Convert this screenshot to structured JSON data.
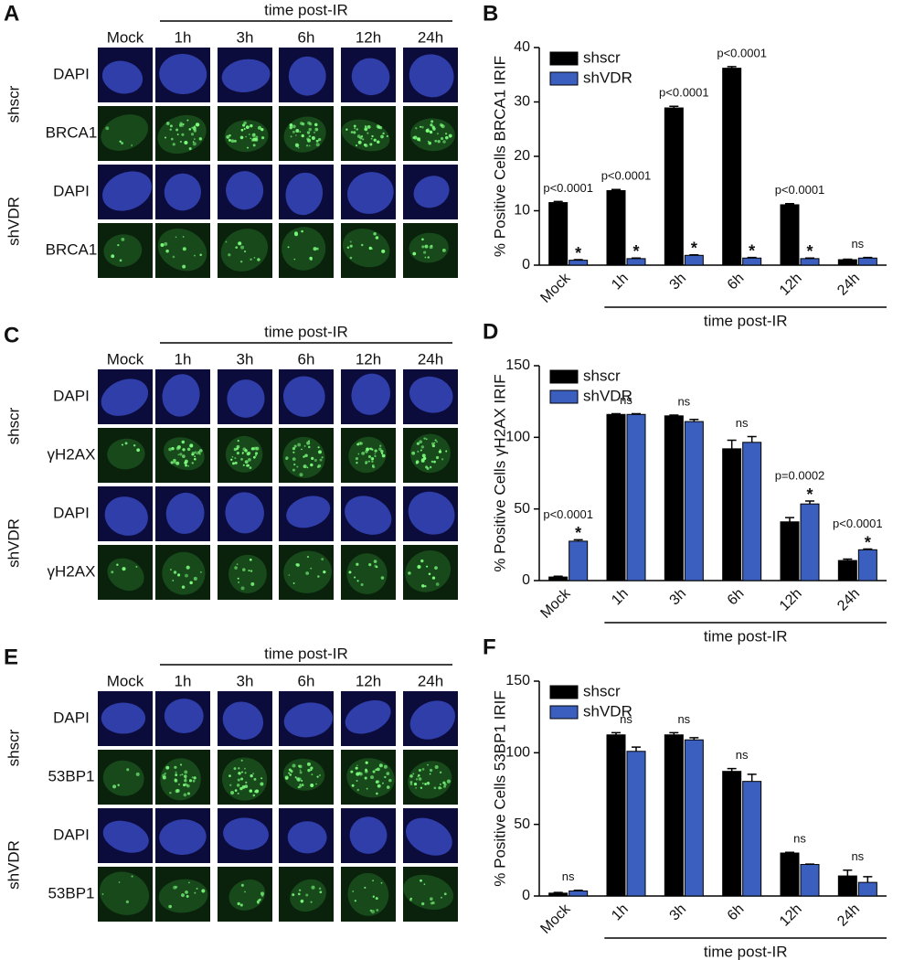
{
  "image_panels": [
    {
      "letter": "A",
      "header": "time post-IR",
      "columns": [
        "Mock",
        "1h",
        "3h",
        "6h",
        "12h",
        "24h"
      ],
      "groups": [
        {
          "name": "shscr",
          "rows": [
            "DAPI",
            "BRCA1"
          ]
        },
        {
          "name": "shVDR",
          "rows": [
            "DAPI",
            "BRCA1"
          ]
        }
      ]
    },
    {
      "letter": "C",
      "header": "time post-IR",
      "columns": [
        "Mock",
        "1h",
        "3h",
        "6h",
        "12h",
        "24h"
      ],
      "groups": [
        {
          "name": "shscr",
          "rows": [
            "DAPI",
            "γH2AX"
          ]
        },
        {
          "name": "shVDR",
          "rows": [
            "DAPI",
            "γH2AX"
          ]
        }
      ]
    },
    {
      "letter": "E",
      "header": "time post-IR",
      "columns": [
        "Mock",
        "1h",
        "3h",
        "6h",
        "12h",
        "24h"
      ],
      "groups": [
        {
          "name": "shscr",
          "rows": [
            "DAPI",
            "53BP1"
          ]
        },
        {
          "name": "shVDR",
          "rows": [
            "DAPI",
            "53BP1"
          ]
        }
      ]
    }
  ],
  "chart_data": [
    {
      "type": "bar",
      "panel_label": "B",
      "ylabel": "% Positive Cells BRCA1 IRIF",
      "xlabel": "time post-IR",
      "categories": [
        "Mock",
        "1h",
        "3h",
        "6h",
        "12h",
        "24h"
      ],
      "series": [
        {
          "name": "shscr",
          "color": "#000000",
          "values": [
            11.5,
            13.7,
            28.9,
            36.2,
            11.1,
            1.0
          ],
          "error": [
            0.2,
            0.2,
            0.3,
            0.3,
            0.2,
            0.1
          ]
        },
        {
          "name": "shVDR",
          "color": "#3a5fbf",
          "values": [
            0.9,
            1.2,
            1.8,
            1.3,
            1.2,
            1.3
          ],
          "error": [
            0.1,
            0.1,
            0.1,
            0.1,
            0.1,
            0.1
          ]
        }
      ],
      "p_labels": [
        "p<0.0001",
        "p<0.0001",
        "p<0.0001",
        "p<0.0001",
        "p<0.0001",
        "ns"
      ],
      "star_labels": [
        "*",
        "*",
        "*",
        "*",
        "*",
        null
      ],
      "ylim": [
        0,
        40
      ],
      "yticks": [
        0,
        10,
        20,
        30,
        40
      ],
      "legend": "upper-left"
    },
    {
      "type": "bar",
      "panel_label": "D",
      "ylabel": "% Positive Cells γH2AX IRIF",
      "xlabel": "time post-IR",
      "categories": [
        "Mock",
        "1h",
        "3h",
        "6h",
        "12h",
        "24h"
      ],
      "series": [
        {
          "name": "shscr",
          "color": "#000000",
          "values": [
            2.5,
            116,
            115,
            92,
            41,
            14
          ],
          "error": [
            0.5,
            0.5,
            0.5,
            6,
            3,
            1
          ]
        },
        {
          "name": "shVDR",
          "color": "#3a5fbf",
          "values": [
            27.5,
            116,
            111,
            96.5,
            53.5,
            21.5
          ],
          "error": [
            1,
            0.5,
            1.5,
            4,
            2,
            0.5
          ]
        }
      ],
      "p_labels": [
        "p<0.0001",
        "ns",
        "ns",
        "ns",
        "p=0.0002",
        "p<0.0001"
      ],
      "star_labels": [
        "*",
        null,
        null,
        null,
        "*",
        "*"
      ],
      "ylim": [
        0,
        150
      ],
      "yticks": [
        0,
        50,
        100,
        150
      ],
      "legend": "upper-left"
    },
    {
      "type": "bar",
      "panel_label": "F",
      "ylabel": "% Positive Cells 53BP1 IRIF",
      "xlabel": "time post-IR",
      "categories": [
        "Mock",
        "1h",
        "3h",
        "6h",
        "12h",
        "24h"
      ],
      "series": [
        {
          "name": "shscr",
          "color": "#000000",
          "values": [
            2,
            112.5,
            112.5,
            87,
            30,
            14
          ],
          "error": [
            0.5,
            1.5,
            1.5,
            2,
            0.5,
            4
          ]
        },
        {
          "name": "shVDR",
          "color": "#3a5fbf",
          "values": [
            3.5,
            101,
            109,
            80,
            22,
            9.5
          ],
          "error": [
            0.5,
            3,
            1.5,
            5,
            0.3,
            4
          ]
        }
      ],
      "p_labels": [
        "ns",
        "ns",
        "ns",
        "ns",
        "ns",
        "ns"
      ],
      "ylim": [
        0,
        150
      ],
      "yticks": [
        0,
        50,
        100,
        150
      ],
      "legend": "upper-left"
    }
  ]
}
